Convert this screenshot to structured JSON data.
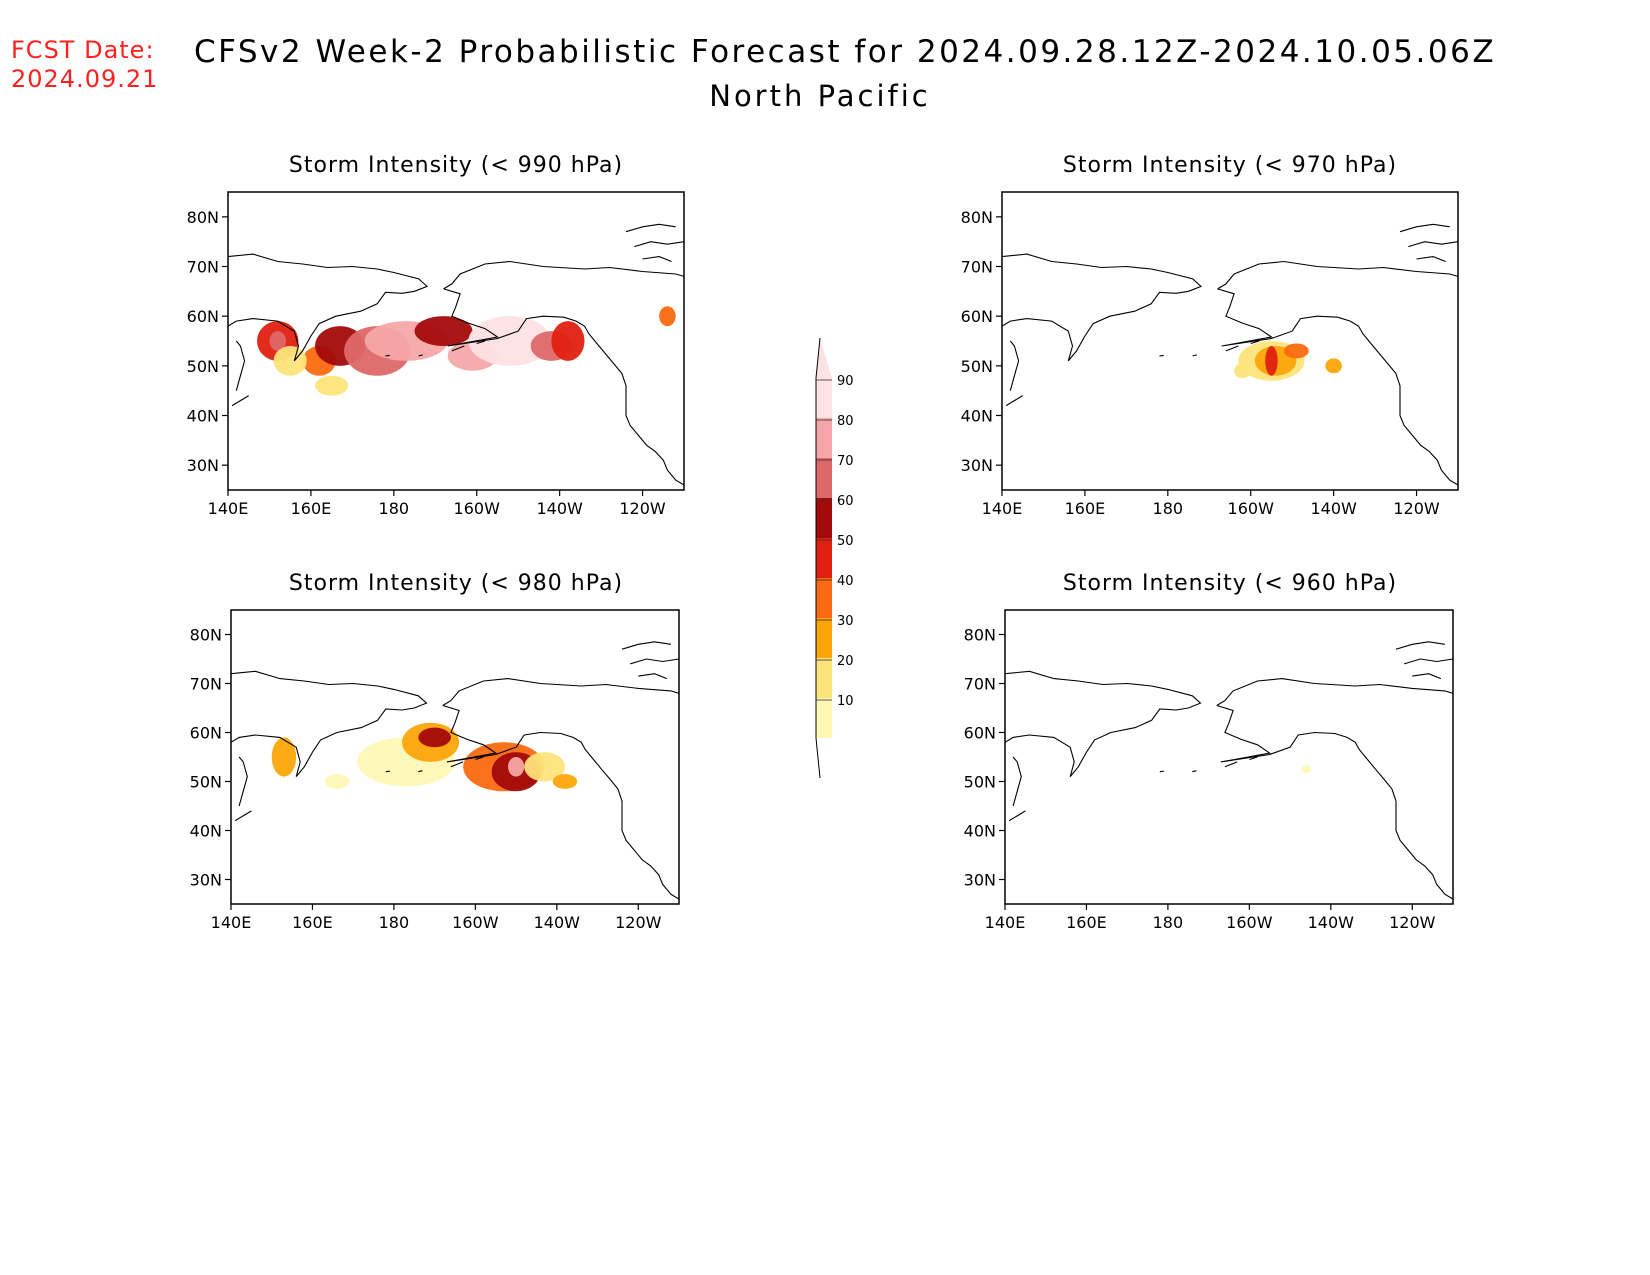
{
  "header": {
    "fcst_label": "FCST Date:",
    "fcst_date": "2024.09.21",
    "title": "CFSv2 Week-2 Probabilistic Forecast for 2024.09.28.12Z-2024.10.05.06Z",
    "subtitle": "North Pacific"
  },
  "colors": {
    "fcst_text": "#ff2020",
    "scale": [
      "#fff8b4",
      "#fde47a",
      "#fca50a",
      "#fb6a10",
      "#e02010",
      "#a40a0a",
      "#de6868",
      "#f6a6a8",
      "#fde2e4"
    ]
  },
  "colorbar": {
    "levels": [
      "10",
      "20",
      "30",
      "40",
      "50",
      "60",
      "70",
      "80",
      "90"
    ]
  },
  "map_axes": {
    "lon_ticks": [
      "140E",
      "160E",
      "180",
      "160W",
      "140W",
      "120W"
    ],
    "lat_ticks": [
      "80N",
      "70N",
      "60N",
      "50N",
      "40N",
      "30N"
    ],
    "lon_range": [
      140,
      250
    ],
    "lat_range": [
      25,
      85
    ]
  },
  "panels": [
    {
      "id": "p990",
      "title": "Storm Intensity (< 990 hPa)",
      "blobs": [
        {
          "lon": 152,
          "lat": 55,
          "rx": 5,
          "ry": 4,
          "level": 5
        },
        {
          "lon": 152,
          "lat": 55,
          "rx": 2,
          "ry": 2,
          "level": 7
        },
        {
          "lon": 162,
          "lat": 51,
          "rx": 4,
          "ry": 3,
          "level": 4
        },
        {
          "lon": 167,
          "lat": 54,
          "rx": 6,
          "ry": 4,
          "level": 6
        },
        {
          "lon": 176,
          "lat": 53,
          "rx": 8,
          "ry": 5,
          "level": 7
        },
        {
          "lon": 183,
          "lat": 55,
          "rx": 10,
          "ry": 4,
          "level": 8
        },
        {
          "lon": 192,
          "lat": 57,
          "rx": 7,
          "ry": 3,
          "level": 6
        },
        {
          "lon": 199,
          "lat": 52,
          "rx": 6,
          "ry": 3,
          "level": 8
        },
        {
          "lon": 208,
          "lat": 55,
          "rx": 10,
          "ry": 5,
          "level": 9
        },
        {
          "lon": 218,
          "lat": 54,
          "rx": 5,
          "ry": 3,
          "level": 7
        },
        {
          "lon": 222,
          "lat": 55,
          "rx": 4,
          "ry": 4,
          "level": 5
        },
        {
          "lon": 155,
          "lat": 51,
          "rx": 4,
          "ry": 3,
          "level": 2
        },
        {
          "lon": 165,
          "lat": 46,
          "rx": 4,
          "ry": 2,
          "level": 2
        },
        {
          "lon": 246,
          "lat": 60,
          "rx": 2,
          "ry": 2,
          "level": 4
        }
      ]
    },
    {
      "id": "p970",
      "title": "Storm Intensity (< 970 hPa)",
      "blobs": [
        {
          "lon": 205,
          "lat": 51,
          "rx": 8,
          "ry": 4,
          "level": 2
        },
        {
          "lon": 206,
          "lat": 51,
          "rx": 5,
          "ry": 3,
          "level": 3
        },
        {
          "lon": 205,
          "lat": 51,
          "rx": 1.5,
          "ry": 3,
          "level": 5
        },
        {
          "lon": 211,
          "lat": 53,
          "rx": 3,
          "ry": 1.5,
          "level": 4
        },
        {
          "lon": 220,
          "lat": 50,
          "rx": 2,
          "ry": 1.5,
          "level": 3
        },
        {
          "lon": 198,
          "lat": 49,
          "rx": 2,
          "ry": 1.5,
          "level": 2
        }
      ]
    },
    {
      "id": "p980",
      "title": "Storm Intensity (< 980 hPa)",
      "blobs": [
        {
          "lon": 183,
          "lat": 54,
          "rx": 12,
          "ry": 5,
          "level": 1
        },
        {
          "lon": 189,
          "lat": 58,
          "rx": 7,
          "ry": 4,
          "level": 3
        },
        {
          "lon": 190,
          "lat": 59,
          "rx": 4,
          "ry": 2,
          "level": 6
        },
        {
          "lon": 153,
          "lat": 55,
          "rx": 3,
          "ry": 4,
          "level": 3
        },
        {
          "lon": 166,
          "lat": 50,
          "rx": 3,
          "ry": 1.5,
          "level": 1
        },
        {
          "lon": 207,
          "lat": 53,
          "rx": 10,
          "ry": 5,
          "level": 4
        },
        {
          "lon": 210,
          "lat": 52,
          "rx": 6,
          "ry": 4,
          "level": 6
        },
        {
          "lon": 210,
          "lat": 53,
          "rx": 2,
          "ry": 2,
          "level": 8
        },
        {
          "lon": 217,
          "lat": 53,
          "rx": 5,
          "ry": 3,
          "level": 2
        },
        {
          "lon": 222,
          "lat": 50,
          "rx": 3,
          "ry": 1.5,
          "level": 3
        }
      ]
    },
    {
      "id": "p960",
      "title": "Storm Intensity (< 960 hPa)",
      "blobs": [
        {
          "lon": 214,
          "lat": 52.5,
          "rx": 1.2,
          "ry": 0.8,
          "level": 1
        }
      ]
    }
  ]
}
